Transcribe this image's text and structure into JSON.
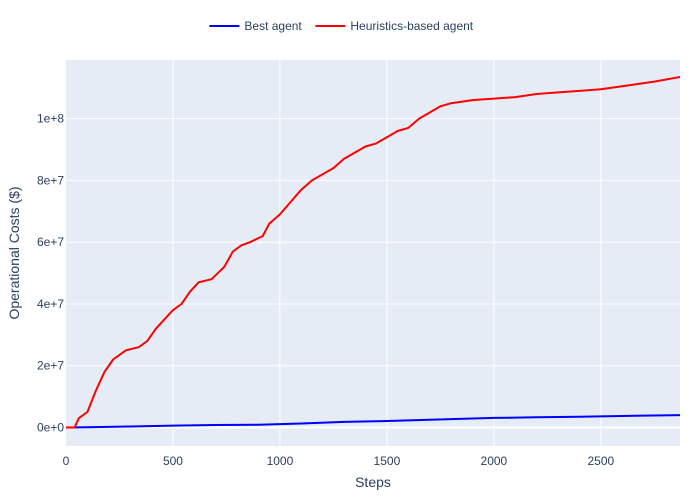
{
  "chart_data": {
    "type": "line",
    "xlabel": "Steps",
    "ylabel": "Operational Costs ($)",
    "xlim": [
      0,
      2870
    ],
    "ylim": [
      -6000000,
      119000000
    ],
    "x_ticks": [
      0,
      500,
      1000,
      1500,
      2000,
      2500
    ],
    "y_ticks": [
      0,
      20000000,
      40000000,
      60000000,
      80000000,
      100000000
    ],
    "y_tick_labels": [
      "0e+0",
      "2e+7",
      "4e+7",
      "6e+7",
      "8e+7",
      "1e+8"
    ],
    "grid": true,
    "legend_position": "top-center",
    "background": "#e5ecf6",
    "series": [
      {
        "name": "Best agent",
        "color": "#0000ff",
        "x": [
          0,
          100,
          300,
          500,
          700,
          900,
          1100,
          1300,
          1500,
          1700,
          1900,
          2000,
          2200,
          2400,
          2600,
          2870
        ],
        "y": [
          0,
          100000,
          300000,
          600000,
          800000,
          900000,
          1300000,
          1800000,
          2100000,
          2500000,
          2900000,
          3100000,
          3300000,
          3500000,
          3700000,
          4000000
        ]
      },
      {
        "name": "Heuristics-based agent",
        "color": "#ff0000",
        "x": [
          0,
          40,
          60,
          100,
          140,
          180,
          220,
          280,
          340,
          380,
          420,
          460,
          500,
          540,
          580,
          620,
          680,
          740,
          780,
          820,
          860,
          920,
          950,
          1000,
          1050,
          1100,
          1150,
          1200,
          1250,
          1300,
          1350,
          1400,
          1450,
          1500,
          1550,
          1600,
          1650,
          1700,
          1750,
          1800,
          1900,
          2000,
          2100,
          2200,
          2300,
          2400,
          2500,
          2550,
          2650,
          2750,
          2870
        ],
        "y": [
          0,
          0,
          3000000,
          5000000,
          12000000,
          18000000,
          22000000,
          25000000,
          26000000,
          28000000,
          32000000,
          35000000,
          38000000,
          40000000,
          44000000,
          47000000,
          48000000,
          52000000,
          57000000,
          59000000,
          60000000,
          62000000,
          66000000,
          69000000,
          73000000,
          77000000,
          80000000,
          82000000,
          84000000,
          87000000,
          89000000,
          91000000,
          92000000,
          94000000,
          96000000,
          97000000,
          100000000,
          102000000,
          104000000,
          105000000,
          106000000,
          106500000,
          107000000,
          108000000,
          108500000,
          109000000,
          109500000,
          110000000,
          111000000,
          112000000,
          113500000
        ]
      }
    ]
  }
}
